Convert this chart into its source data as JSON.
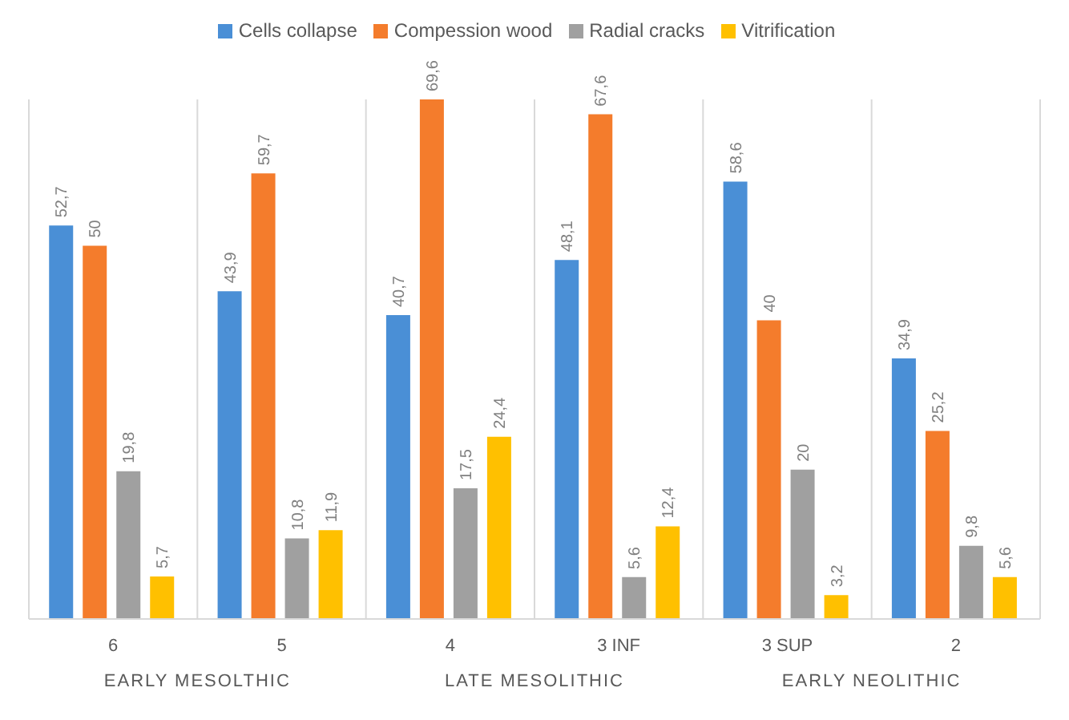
{
  "chart_data": {
    "type": "bar",
    "categories": [
      "6",
      "5",
      "4",
      "3 INF",
      "3 SUP",
      "2"
    ],
    "series": [
      {
        "name": "Cells collapse",
        "color": "#4a8fd6",
        "values": [
          52.7,
          43.9,
          40.7,
          48.1,
          58.6,
          34.9
        ],
        "value_labels": [
          "52,7",
          "43,9",
          "40,7",
          "48,1",
          "58,6",
          "34,9"
        ]
      },
      {
        "name": "Compession wood",
        "color": "#f47c2c",
        "values": [
          50,
          59.7,
          69.6,
          67.6,
          40,
          25.2
        ],
        "value_labels": [
          "50",
          "59,7",
          "69,6",
          "67,6",
          "40",
          "25,2"
        ]
      },
      {
        "name": "Radial cracks",
        "color": "#a0a0a0",
        "values": [
          19.8,
          10.8,
          17.5,
          5.6,
          20,
          9.8
        ],
        "value_labels": [
          "19,8",
          "10,8",
          "17,5",
          "5,6",
          "20",
          "9,8"
        ]
      },
      {
        "name": "Vitrification",
        "color": "#ffc000",
        "values": [
          5.7,
          11.9,
          24.4,
          12.4,
          3.2,
          5.6
        ],
        "value_labels": [
          "5,7",
          "11,9",
          "24,4",
          "12,4",
          "3,2",
          "5,6"
        ]
      }
    ],
    "annotations": [
      "EARLY MESOLTHIC",
      "LATE MESOLITHIC",
      "EARLY NEOLITHIC"
    ],
    "grid": "x",
    "legend": "top"
  }
}
